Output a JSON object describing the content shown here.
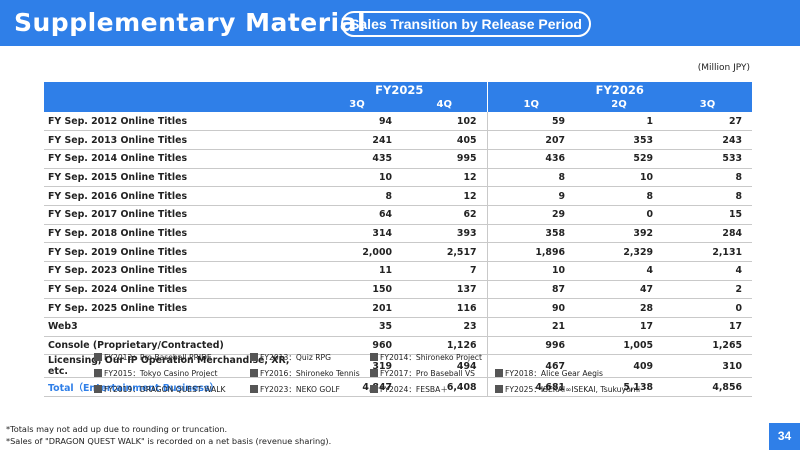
{
  "header": {
    "title": "Supplementary Material",
    "subtitle": "Sales Transition by Release Period"
  },
  "table": {
    "unit": "(Million JPY)",
    "fy_headers": [
      "FY2025",
      "FY2026"
    ],
    "quarters": [
      "3Q",
      "4Q",
      "1Q",
      "2Q",
      "3Q"
    ],
    "rows": [
      {
        "label": "FY Sep. 2012 Online Titles",
        "values": [
          "94",
          "102",
          "59",
          "1",
          "27"
        ]
      },
      {
        "label": "FY Sep. 2013 Online Titles",
        "values": [
          "241",
          "405",
          "207",
          "353",
          "243"
        ]
      },
      {
        "label": "FY Sep. 2014 Online Titles",
        "values": [
          "435",
          "995",
          "436",
          "529",
          "533"
        ]
      },
      {
        "label": "FY Sep. 2015 Online Titles",
        "values": [
          "10",
          "12",
          "8",
          "10",
          "8"
        ]
      },
      {
        "label": "FY Sep. 2016 Online Titles",
        "values": [
          "8",
          "12",
          "9",
          "8",
          "8"
        ]
      },
      {
        "label": "FY Sep. 2017 Online Titles",
        "values": [
          "64",
          "62",
          "29",
          "0",
          "15"
        ]
      },
      {
        "label": "FY Sep. 2018 Online Titles",
        "values": [
          "314",
          "393",
          "358",
          "392",
          "284"
        ]
      },
      {
        "label": "FY Sep. 2019 Online Titles",
        "values": [
          "2,000",
          "2,517",
          "1,896",
          "2,329",
          "2,131"
        ]
      },
      {
        "label": "FY Sep. 2023 Online Titles",
        "values": [
          "11",
          "7",
          "10",
          "4",
          "4"
        ]
      },
      {
        "label": "FY Sep. 2024 Online Titles",
        "values": [
          "150",
          "137",
          "87",
          "47",
          "2"
        ]
      },
      {
        "label": "FY Sep. 2025 Online Titles",
        "values": [
          "201",
          "116",
          "90",
          "28",
          "0"
        ]
      },
      {
        "label": "Web3",
        "values": [
          "35",
          "23",
          "21",
          "17",
          "17"
        ]
      },
      {
        "label": "Console (Proprietary/Contracted)",
        "values": [
          "960",
          "1,126",
          "996",
          "1,005",
          "1,265"
        ]
      },
      {
        "label": "Licensing, Our IP Operation Merchandise, XR, etc.",
        "values": [
          "319",
          "494",
          "467",
          "409",
          "310"
        ]
      }
    ],
    "total": {
      "label": "Total（Entertainment Business）",
      "values": [
        "4,847",
        "6,408",
        "4,681",
        "5,138",
        "4,856"
      ]
    }
  },
  "legend": [
    [
      "FY2012：Pro Baseball PRIDE",
      "FY2013：Quiz RPG",
      "FY2014：Shironeko Project"
    ],
    [
      "FY2015：Tokyo Casino Project",
      "FY2016：Shironeko Tennis",
      "FY2017：Pro Baseball VS",
      "FY2018：Alice Gear Aegis"
    ],
    [
      "FY2019：DRAGON QUEST WALK",
      "FY2023：NEKO GOLF",
      "FY2024：FESBA＋",
      "FY2025：ISEKAI∞ISEKAI, Tsukuyomi"
    ]
  ],
  "notes": [
    "*Totals may not add up due to rounding or truncation.",
    "*Sales of \"DRAGON QUEST WALK\" is recorded on a net basis (revenue sharing)."
  ],
  "page_number": "34",
  "colors": {
    "accent": "#2f7fe8"
  }
}
